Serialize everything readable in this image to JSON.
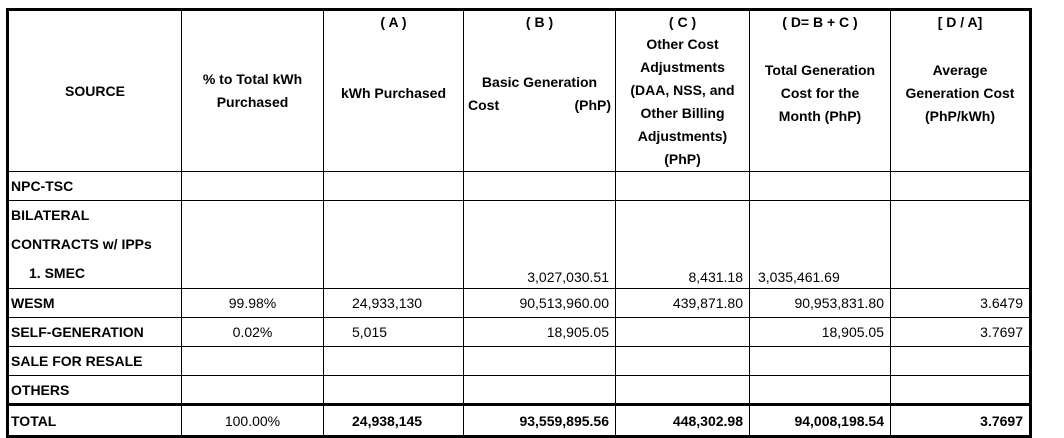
{
  "headers": {
    "source": "SOURCE",
    "pct": "% to Total kWh Purchased",
    "a_tag": "( A )",
    "a": "kWh Purchased",
    "b_tag": "( B )",
    "b_line1": "Basic Generation",
    "b_line2_left": "Cost",
    "b_line2_right": "(PhP)",
    "c_tag": "( C )",
    "c": "Other Cost Adjustments (DAA, NSS, and Other Billing Adjustments) (PhP)",
    "d_tag": "( D= B + C )",
    "d": "Total Generation Cost for the Month (PhP)",
    "e_tag": "[ D / A]",
    "e": "Average Generation Cost (PhP/kWh)"
  },
  "rows": {
    "npc": {
      "source": "NPC-TSC"
    },
    "bilateral": {
      "source_line1": "BILATERAL",
      "source_line2": "CONTRACTS w/ IPPs",
      "source_line3": "1.   SMEC",
      "b": "3,027,030.51",
      "c": "8,431.18",
      "d": "3,035,461.69"
    },
    "wesm": {
      "source": "WESM",
      "pct": "99.98%",
      "a": "24,933,130",
      "b": "90,513,960.00",
      "c": "439,871.80",
      "d": "90,953,831.80",
      "e": "3.6479"
    },
    "self": {
      "source": "SELF-GENERATION",
      "pct": "0.02%",
      "a": "5,015",
      "b": "18,905.05",
      "d": "18,905.05",
      "e": "3.7697"
    },
    "resale": {
      "source": "SALE FOR RESALE"
    },
    "others": {
      "source": "OTHERS"
    },
    "total": {
      "source": "TOTAL",
      "pct": "100.00%",
      "a": "24,938,145",
      "b": "93,559,895.56",
      "c": "448,302.98",
      "d": "94,008,198.54",
      "e": "3.7697"
    }
  }
}
